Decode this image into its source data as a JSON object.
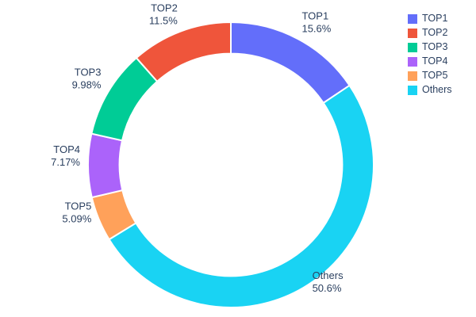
{
  "chart_data": {
    "type": "pie",
    "subtype": "donut",
    "hole": 0.78,
    "title": "",
    "labels": [
      "TOP1",
      "TOP2",
      "TOP3",
      "TOP4",
      "TOP5",
      "Others"
    ],
    "values": [
      15.6,
      11.5,
      9.98,
      7.17,
      5.09,
      50.6
    ],
    "display_percents": [
      "15.6%",
      "11.5%",
      "9.98%",
      "7.17%",
      "5.09%",
      "50.6%"
    ],
    "colors": [
      "#636efa",
      "#ef553b",
      "#00cc96",
      "#ab63fa",
      "#ffa15a",
      "#19d3f3"
    ],
    "draw_order_clockwise_from_top": [
      "TOP1",
      "Others",
      "TOP5",
      "TOP4",
      "TOP3",
      "TOP2"
    ],
    "labels_position": "outside",
    "text_color": "#2a3f5f",
    "background_color": "#ffffff",
    "legend": {
      "position": "top-right",
      "items": [
        "TOP1",
        "TOP2",
        "TOP3",
        "TOP4",
        "TOP5",
        "Others"
      ]
    }
  }
}
